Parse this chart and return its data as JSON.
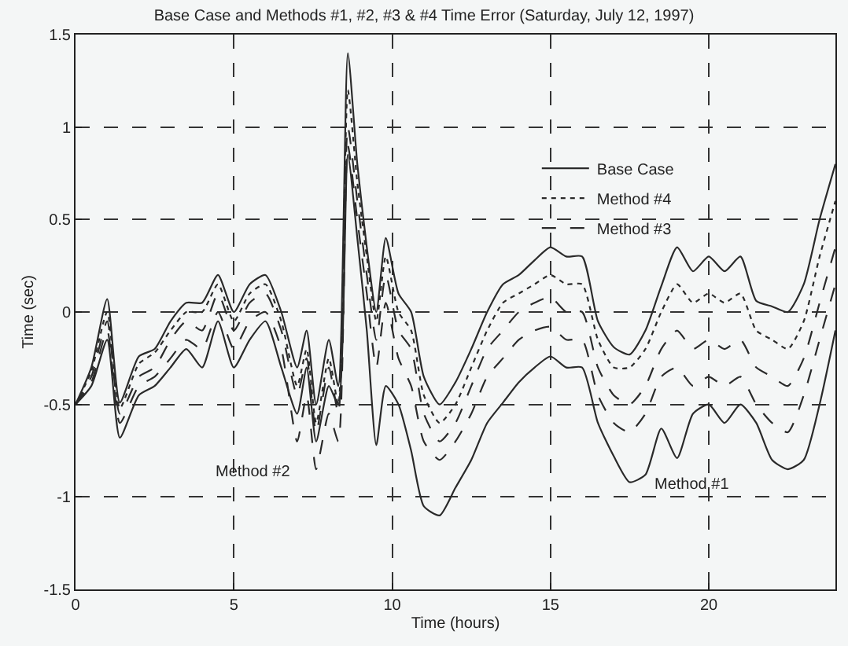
{
  "chart_data": {
    "type": "line",
    "title": "Base Case and Methods #1, #2, #3 & #4 Time Error (Saturday, July 12, 1997)",
    "xlabel": "Time (hours)",
    "ylabel": "Time (sec)",
    "x": [
      0,
      0.5,
      1,
      1.4,
      2,
      2.5,
      3,
      3.5,
      4,
      4.5,
      5,
      5.5,
      6,
      6.5,
      7,
      7.3,
      7.6,
      8,
      8.3,
      8.6,
      8.9,
      9.2,
      9.5,
      9.8,
      10.2,
      10.6,
      11,
      11.5,
      12,
      12.5,
      13,
      13.5,
      14,
      14.5,
      15,
      15.5,
      16,
      16.5,
      17,
      17.5,
      18,
      18.5,
      19,
      19.5,
      20,
      20.5,
      21,
      21.5,
      22,
      22.5,
      23,
      23.5,
      24
    ],
    "series": [
      {
        "name": "Base Case",
        "color": "#2a2a2a",
        "line_style": "solid",
        "values": [
          -0.5,
          -0.3,
          0.07,
          -0.49,
          -0.24,
          -0.2,
          -0.05,
          0.05,
          0.05,
          0.2,
          0.0,
          0.15,
          0.2,
          0.0,
          -0.3,
          -0.1,
          -0.5,
          -0.15,
          -0.4,
          1.4,
          0.8,
          0.35,
          0.0,
          0.4,
          0.1,
          0.0,
          -0.35,
          -0.5,
          -0.38,
          -0.2,
          0.0,
          0.15,
          0.2,
          0.28,
          0.35,
          0.3,
          0.3,
          -0.05,
          -0.19,
          -0.23,
          -0.1,
          0.14,
          0.35,
          0.22,
          0.3,
          0.22,
          0.3,
          0.06,
          0.03,
          0.0,
          0.15,
          0.5,
          0.8
        ]
      },
      {
        "name": "Method #4",
        "color": "#2a2a2a",
        "line_style": "dotted",
        "values": [
          -0.5,
          -0.32,
          0.0,
          -0.52,
          -0.28,
          -0.22,
          -0.1,
          0.0,
          0.0,
          0.15,
          -0.05,
          0.1,
          0.15,
          -0.05,
          -0.4,
          -0.2,
          -0.6,
          -0.25,
          -0.5,
          1.2,
          0.7,
          0.3,
          -0.05,
          0.3,
          0.0,
          -0.1,
          -0.45,
          -0.6,
          -0.5,
          -0.3,
          -0.1,
          0.05,
          0.1,
          0.15,
          0.2,
          0.15,
          0.15,
          -0.15,
          -0.3,
          -0.3,
          -0.2,
          0.0,
          0.15,
          0.05,
          0.1,
          0.05,
          0.1,
          -0.1,
          -0.15,
          -0.2,
          -0.05,
          0.3,
          0.6
        ]
      },
      {
        "name": "Method #3",
        "color": "#2a2a2a",
        "line_style": "dashed",
        "values": [
          -0.5,
          -0.35,
          -0.05,
          -0.55,
          -0.35,
          -0.3,
          -0.15,
          -0.05,
          -0.1,
          0.1,
          -0.1,
          0.05,
          0.1,
          -0.1,
          -0.45,
          -0.25,
          -0.65,
          -0.3,
          -0.55,
          1.0,
          0.6,
          0.2,
          -0.15,
          0.2,
          -0.1,
          -0.2,
          -0.55,
          -0.7,
          -0.6,
          -0.4,
          -0.2,
          -0.1,
          0.0,
          0.05,
          0.08,
          0.0,
          0.0,
          -0.3,
          -0.45,
          -0.5,
          -0.4,
          -0.2,
          -0.1,
          -0.2,
          -0.15,
          -0.2,
          -0.15,
          -0.3,
          -0.35,
          -0.4,
          -0.25,
          0.05,
          0.35
        ]
      },
      {
        "color": "#2a2a2a",
        "line_style": "dashed",
        "values": [
          -0.5,
          -0.38,
          -0.1,
          -0.6,
          -0.4,
          -0.35,
          -0.25,
          -0.15,
          -0.2,
          0.0,
          -0.2,
          -0.05,
          0.0,
          -0.2,
          -0.7,
          -0.45,
          -0.85,
          -0.55,
          -0.7,
          0.9,
          0.5,
          0.1,
          -0.3,
          0.05,
          -0.25,
          -0.4,
          -0.7,
          -0.8,
          -0.7,
          -0.55,
          -0.35,
          -0.25,
          -0.15,
          -0.1,
          -0.08,
          -0.15,
          -0.15,
          -0.45,
          -0.6,
          -0.65,
          -0.55,
          -0.35,
          -0.3,
          -0.4,
          -0.35,
          -0.4,
          -0.35,
          -0.5,
          -0.6,
          -0.65,
          -0.45,
          -0.15,
          0.15
        ]
      },
      {
        "color": "#2a2a2a",
        "line_style": "solid",
        "values": [
          -0.5,
          -0.4,
          -0.15,
          -0.68,
          -0.45,
          -0.4,
          -0.3,
          -0.2,
          -0.3,
          -0.05,
          -0.3,
          -0.15,
          -0.05,
          -0.3,
          -0.55,
          -0.3,
          -0.7,
          -0.4,
          -0.5,
          0.85,
          0.4,
          -0.1,
          -0.72,
          -0.4,
          -0.5,
          -0.75,
          -1.05,
          -1.1,
          -0.95,
          -0.8,
          -0.6,
          -0.49,
          -0.38,
          -0.3,
          -0.24,
          -0.3,
          -0.3,
          -0.6,
          -0.78,
          -0.92,
          -0.88,
          -0.63,
          -0.79,
          -0.55,
          -0.5,
          -0.6,
          -0.5,
          -0.6,
          -0.8,
          -0.85,
          -0.8,
          -0.5,
          -0.1
        ]
      }
    ],
    "annotations": [
      {
        "text": "Method #2",
        "x": 7.6,
        "y": -0.85
      },
      {
        "text": "Method #1",
        "x": 17.5,
        "y": -0.92
      }
    ],
    "xlim": [
      0,
      24
    ],
    "xticks": [
      0,
      5,
      10,
      15,
      20
    ],
    "ylim": [
      -1.5,
      1.5
    ],
    "yticks": [
      -1.5,
      -1,
      -0.5,
      0,
      0.5,
      1,
      1.5
    ],
    "grid": true,
    "legend": "top right"
  }
}
